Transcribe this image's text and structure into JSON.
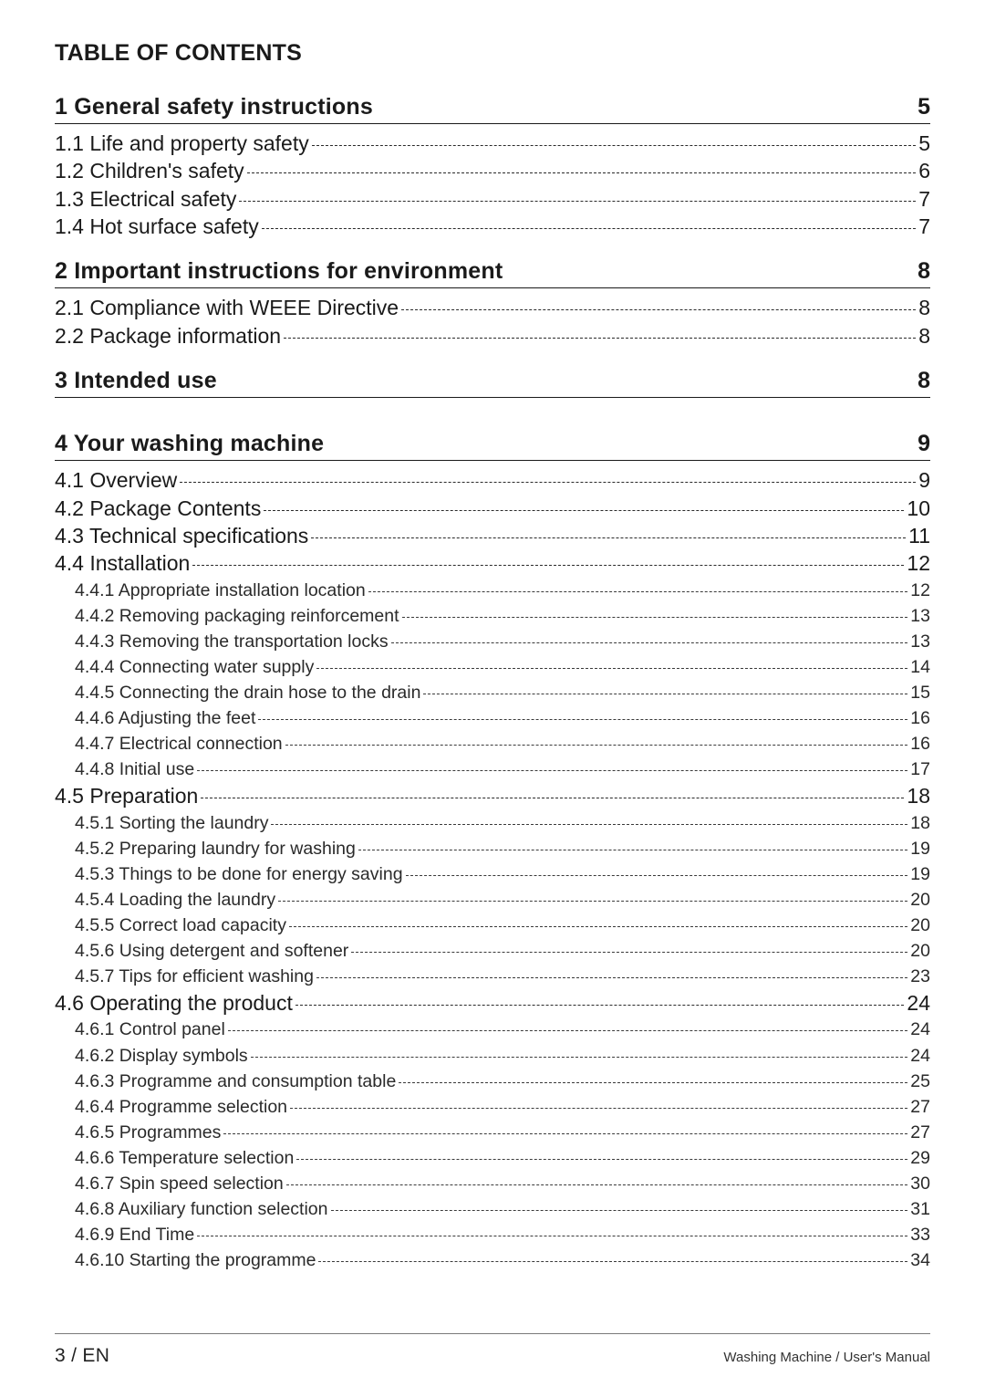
{
  "colors": {
    "text": "#1a1a1a",
    "rule": "#1a1a1a",
    "leader": "#2a2a2a",
    "background": "#ffffff",
    "footer_rule": "#7a7a7a"
  },
  "typography": {
    "title_size_pt": 19,
    "level1_size_pt": 17,
    "level2_size_pt": 15,
    "footer_left_size_pt": 16,
    "footer_right_size_pt": 11,
    "weight_bold": 700,
    "weight_light": 300
  },
  "title": "TABLE OF CONTENTS",
  "sections": [
    {
      "title": "1 General safety instructions",
      "page": "5",
      "entries": [
        {
          "level": 1,
          "label": "1.1 Life and property safety",
          "page": "5"
        },
        {
          "level": 1,
          "label": "1.2 Children's safety",
          "page": "6"
        },
        {
          "level": 1,
          "label": "1.3 Electrical safety",
          "page": "7"
        },
        {
          "level": 1,
          "label": "1.4 Hot surface safety",
          "page": "7"
        }
      ]
    },
    {
      "title": "2 Important instructions for environment",
      "page": "8",
      "entries": [
        {
          "level": 1,
          "label": "2.1 Compliance with WEEE Directive",
          "page": "8"
        },
        {
          "level": 1,
          "label": "2.2 Package information",
          "page": "8"
        }
      ]
    },
    {
      "title": "3 Intended use",
      "page": "8",
      "entries": []
    },
    {
      "title": "4 Your washing machine",
      "page": "9",
      "entries": [
        {
          "level": 1,
          "label": "4.1 Overview",
          "page": "9"
        },
        {
          "level": 1,
          "label": "4.2 Package Contents",
          "page": "10"
        },
        {
          "level": 1,
          "label": "4.3 Technical specifications",
          "page": "11"
        },
        {
          "level": 1,
          "label": "4.4 Installation",
          "page": "12"
        },
        {
          "level": 2,
          "label": "4.4.1 Appropriate installation location",
          "page": "12"
        },
        {
          "level": 2,
          "label": "4.4.2 Removing packaging reinforcement",
          "page": "13"
        },
        {
          "level": 2,
          "label": "4.4.3 Removing the transportation locks",
          "page": "13"
        },
        {
          "level": 2,
          "label": "4.4.4 Connecting water supply",
          "page": "14"
        },
        {
          "level": 2,
          "label": "4.4.5 Connecting the drain hose to the drain",
          "page": "15"
        },
        {
          "level": 2,
          "label": "4.4.6 Adjusting the feet",
          "page": "16"
        },
        {
          "level": 2,
          "label": "4.4.7 Electrical connection",
          "page": "16"
        },
        {
          "level": 2,
          "label": "4.4.8 Initial use",
          "page": "17"
        },
        {
          "level": 1,
          "label": "4.5 Preparation",
          "page": "18"
        },
        {
          "level": 2,
          "label": "4.5.1 Sorting the laundry",
          "page": "18"
        },
        {
          "level": 2,
          "label": "4.5.2 Preparing laundry for washing",
          "page": "19"
        },
        {
          "level": 2,
          "label": "4.5.3 Things to be done for energy saving",
          "page": "19"
        },
        {
          "level": 2,
          "label": "4.5.4 Loading the laundry",
          "page": "20"
        },
        {
          "level": 2,
          "label": "4.5.5 Correct load capacity",
          "page": "20"
        },
        {
          "level": 2,
          "label": "4.5.6 Using detergent and softener",
          "page": "20"
        },
        {
          "level": 2,
          "label": "4.5.7 Tips for efficient washing",
          "page": "23"
        },
        {
          "level": 1,
          "label": "4.6 Operating the product",
          "page": "24"
        },
        {
          "level": 2,
          "label": "4.6.1 Control panel",
          "page": "24"
        },
        {
          "level": 2,
          "label": "4.6.2 Display symbols",
          "page": "24"
        },
        {
          "level": 2,
          "label": "4.6.3 Programme and consumption table",
          "page": "25"
        },
        {
          "level": 2,
          "label": "4.6.4 Programme selection",
          "page": "27"
        },
        {
          "level": 2,
          "label": "4.6.5 Programmes",
          "page": "27"
        },
        {
          "level": 2,
          "label": "4.6.6 Temperature selection",
          "page": "29"
        },
        {
          "level": 2,
          "label": "4.6.7 Spin speed selection",
          "page": "30"
        },
        {
          "level": 2,
          "label": "4.6.8 Auxiliary function selection",
          "page": "31"
        },
        {
          "level": 2,
          "label": "4.6.9 End Time",
          "page": "33"
        },
        {
          "level": 2,
          "label": "4.6.10 Starting the programme",
          "page": "34"
        }
      ]
    }
  ],
  "footer": {
    "left": "3 / EN",
    "right": "Washing Machine / User's Manual"
  }
}
